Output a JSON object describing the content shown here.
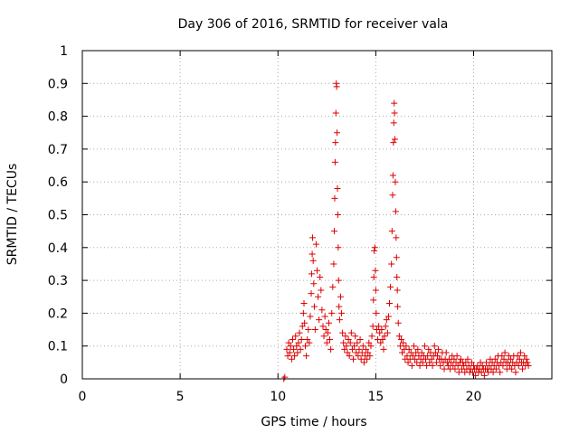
{
  "chart_data": {
    "type": "scatter",
    "title": "Day 306 of 2016, SRMTID for receiver vala",
    "xlabel": "GPS time / hours",
    "ylabel": "SRMTID / TECUs",
    "xlim": [
      0,
      24
    ],
    "ylim": [
      0,
      1
    ],
    "xticks": [
      0,
      5,
      10,
      15,
      20
    ],
    "yticks": [
      0,
      0.1,
      0.2,
      0.3,
      0.4,
      0.5,
      0.6,
      0.7,
      0.8,
      0.9,
      1
    ],
    "xtick_labels": [
      "0",
      "5",
      "10",
      "15",
      "20"
    ],
    "ytick_labels": [
      "0",
      "0.1",
      "0.2",
      "0.3",
      "0.4",
      "0.5",
      "0.6",
      "0.7",
      "0.8",
      "0.9",
      "1"
    ],
    "grid": true,
    "marker": "+",
    "marker_color": "#dd0000",
    "series": [
      {
        "name": "SRMTID",
        "points": [
          [
            10.3,
            0.0
          ],
          [
            10.35,
            0.005
          ],
          [
            10.45,
            0.09
          ],
          [
            10.5,
            0.07
          ],
          [
            10.55,
            0.11
          ],
          [
            10.6,
            0.08
          ],
          [
            10.65,
            0.1
          ],
          [
            10.7,
            0.06
          ],
          [
            10.75,
            0.12
          ],
          [
            10.8,
            0.09
          ],
          [
            10.85,
            0.07
          ],
          [
            10.9,
            0.13
          ],
          [
            10.95,
            0.1
          ],
          [
            11.0,
            0.08
          ],
          [
            11.05,
            0.11
          ],
          [
            11.1,
            0.14
          ],
          [
            11.15,
            0.09
          ],
          [
            11.2,
            0.12
          ],
          [
            11.25,
            0.16
          ],
          [
            11.3,
            0.2
          ],
          [
            11.33,
            0.23
          ],
          [
            11.36,
            0.17
          ],
          [
            11.4,
            0.1
          ],
          [
            11.45,
            0.07
          ],
          [
            11.5,
            0.12
          ],
          [
            11.55,
            0.15
          ],
          [
            11.6,
            0.11
          ],
          [
            11.65,
            0.19
          ],
          [
            11.7,
            0.26
          ],
          [
            11.72,
            0.32
          ],
          [
            11.75,
            0.38
          ],
          [
            11.77,
            0.43
          ],
          [
            11.8,
            0.36
          ],
          [
            11.83,
            0.29
          ],
          [
            11.86,
            0.22
          ],
          [
            11.9,
            0.15
          ],
          [
            11.95,
            0.41
          ],
          [
            12.0,
            0.33
          ],
          [
            12.05,
            0.25
          ],
          [
            12.1,
            0.18
          ],
          [
            12.15,
            0.31
          ],
          [
            12.2,
            0.27
          ],
          [
            12.25,
            0.21
          ],
          [
            12.3,
            0.16
          ],
          [
            12.35,
            0.13
          ],
          [
            12.4,
            0.19
          ],
          [
            12.45,
            0.15
          ],
          [
            12.5,
            0.11
          ],
          [
            12.55,
            0.14
          ],
          [
            12.6,
            0.17
          ],
          [
            12.65,
            0.12
          ],
          [
            12.7,
            0.09
          ],
          [
            12.75,
            0.2
          ],
          [
            12.8,
            0.28
          ],
          [
            12.85,
            0.35
          ],
          [
            12.88,
            0.45
          ],
          [
            12.9,
            0.55
          ],
          [
            12.92,
            0.66
          ],
          [
            12.94,
            0.72
          ],
          [
            12.96,
            0.81
          ],
          [
            12.98,
            0.9
          ],
          [
            13.0,
            0.89
          ],
          [
            13.02,
            0.75
          ],
          [
            13.04,
            0.58
          ],
          [
            13.06,
            0.5
          ],
          [
            13.08,
            0.4
          ],
          [
            13.1,
            0.3
          ],
          [
            13.12,
            0.22
          ],
          [
            13.15,
            0.18
          ],
          [
            13.2,
            0.25
          ],
          [
            13.25,
            0.2
          ],
          [
            13.3,
            0.14
          ],
          [
            13.35,
            0.11
          ],
          [
            13.4,
            0.09
          ],
          [
            13.45,
            0.13
          ],
          [
            13.5,
            0.1
          ],
          [
            13.55,
            0.08
          ],
          [
            13.6,
            0.12
          ],
          [
            13.65,
            0.07
          ],
          [
            13.7,
            0.11
          ],
          [
            13.75,
            0.14
          ],
          [
            13.8,
            0.09
          ],
          [
            13.85,
            0.06
          ],
          [
            13.9,
            0.1
          ],
          [
            13.95,
            0.13
          ],
          [
            14.0,
            0.08
          ],
          [
            14.05,
            0.11
          ],
          [
            14.1,
            0.07
          ],
          [
            14.15,
            0.09
          ],
          [
            14.2,
            0.12
          ],
          [
            14.25,
            0.06
          ],
          [
            14.3,
            0.08
          ],
          [
            14.35,
            0.1
          ],
          [
            14.4,
            0.05
          ],
          [
            14.45,
            0.07
          ],
          [
            14.5,
            0.09
          ],
          [
            14.55,
            0.06
          ],
          [
            14.6,
            0.08
          ],
          [
            14.65,
            0.11
          ],
          [
            14.7,
            0.07
          ],
          [
            14.75,
            0.1
          ],
          [
            14.8,
            0.13
          ],
          [
            14.85,
            0.16
          ],
          [
            14.88,
            0.24
          ],
          [
            14.9,
            0.31
          ],
          [
            14.92,
            0.39
          ],
          [
            14.95,
            0.4
          ],
          [
            14.98,
            0.33
          ],
          [
            15.0,
            0.27
          ],
          [
            15.02,
            0.2
          ],
          [
            15.05,
            0.15
          ],
          [
            15.1,
            0.12
          ],
          [
            15.15,
            0.16
          ],
          [
            15.2,
            0.14
          ],
          [
            15.25,
            0.11
          ],
          [
            15.3,
            0.15
          ],
          [
            15.35,
            0.12
          ],
          [
            15.4,
            0.09
          ],
          [
            15.45,
            0.13
          ],
          [
            15.5,
            0.16
          ],
          [
            15.55,
            0.18
          ],
          [
            15.6,
            0.14
          ],
          [
            15.65,
            0.19
          ],
          [
            15.7,
            0.23
          ],
          [
            15.75,
            0.28
          ],
          [
            15.8,
            0.35
          ],
          [
            15.83,
            0.45
          ],
          [
            15.86,
            0.56
          ],
          [
            15.88,
            0.62
          ],
          [
            15.9,
            0.72
          ],
          [
            15.92,
            0.78
          ],
          [
            15.94,
            0.84
          ],
          [
            15.96,
            0.81
          ],
          [
            15.98,
            0.73
          ],
          [
            16.0,
            0.6
          ],
          [
            16.02,
            0.51
          ],
          [
            16.04,
            0.43
          ],
          [
            16.06,
            0.37
          ],
          [
            16.08,
            0.31
          ],
          [
            16.1,
            0.27
          ],
          [
            16.12,
            0.22
          ],
          [
            16.15,
            0.17
          ],
          [
            16.2,
            0.13
          ],
          [
            16.25,
            0.1
          ],
          [
            16.3,
            0.12
          ],
          [
            16.35,
            0.08
          ],
          [
            16.4,
            0.11
          ],
          [
            16.45,
            0.09
          ],
          [
            16.5,
            0.06
          ],
          [
            16.55,
            0.1
          ],
          [
            16.6,
            0.07
          ],
          [
            16.65,
            0.05
          ],
          [
            16.7,
            0.09
          ],
          [
            16.75,
            0.06
          ],
          [
            16.8,
            0.08
          ],
          [
            16.85,
            0.04
          ],
          [
            16.9,
            0.07
          ],
          [
            16.95,
            0.1
          ],
          [
            17.0,
            0.06
          ],
          [
            17.05,
            0.08
          ],
          [
            17.1,
            0.05
          ],
          [
            17.15,
            0.09
          ],
          [
            17.2,
            0.07
          ],
          [
            17.25,
            0.04
          ],
          [
            17.3,
            0.06
          ],
          [
            17.35,
            0.08
          ],
          [
            17.4,
            0.05
          ],
          [
            17.45,
            0.07
          ],
          [
            17.5,
            0.1
          ],
          [
            17.55,
            0.06
          ],
          [
            17.6,
            0.04
          ],
          [
            17.65,
            0.07
          ],
          [
            17.7,
            0.09
          ],
          [
            17.75,
            0.05
          ],
          [
            17.8,
            0.08
          ],
          [
            17.85,
            0.06
          ],
          [
            17.9,
            0.04
          ],
          [
            17.95,
            0.07
          ],
          [
            18.0,
            0.1
          ],
          [
            18.05,
            0.08
          ],
          [
            18.1,
            0.05
          ],
          [
            18.15,
            0.07
          ],
          [
            18.2,
            0.09
          ],
          [
            18.25,
            0.06
          ],
          [
            18.3,
            0.04
          ],
          [
            18.35,
            0.06
          ],
          [
            18.4,
            0.08
          ],
          [
            18.45,
            0.05
          ],
          [
            18.5,
            0.03
          ],
          [
            18.55,
            0.06
          ],
          [
            18.6,
            0.08
          ],
          [
            18.65,
            0.05
          ],
          [
            18.7,
            0.04
          ],
          [
            18.75,
            0.06
          ],
          [
            18.8,
            0.03
          ],
          [
            18.85,
            0.05
          ],
          [
            18.9,
            0.07
          ],
          [
            18.95,
            0.04
          ],
          [
            19.0,
            0.06
          ],
          [
            19.05,
            0.03
          ],
          [
            19.1,
            0.05
          ],
          [
            19.15,
            0.07
          ],
          [
            19.2,
            0.04
          ],
          [
            19.25,
            0.02
          ],
          [
            19.3,
            0.05
          ],
          [
            19.35,
            0.06
          ],
          [
            19.4,
            0.03
          ],
          [
            19.45,
            0.05
          ],
          [
            19.5,
            0.04
          ],
          [
            19.55,
            0.02
          ],
          [
            19.6,
            0.05
          ],
          [
            19.65,
            0.03
          ],
          [
            19.7,
            0.06
          ],
          [
            19.75,
            0.04
          ],
          [
            19.8,
            0.02
          ],
          [
            19.85,
            0.03
          ],
          [
            19.9,
            0.05
          ],
          [
            19.95,
            0.02
          ],
          [
            20.0,
            0.04
          ],
          [
            20.05,
            0.03
          ],
          [
            20.1,
            0.01
          ],
          [
            20.15,
            0.03
          ],
          [
            20.2,
            0.04
          ],
          [
            20.25,
            0.02
          ],
          [
            20.3,
            0.03
          ],
          [
            20.35,
            0.05
          ],
          [
            20.4,
            0.02
          ],
          [
            20.45,
            0.04
          ],
          [
            20.5,
            0.03
          ],
          [
            20.55,
            0.01
          ],
          [
            20.6,
            0.03
          ],
          [
            20.65,
            0.05
          ],
          [
            20.7,
            0.03
          ],
          [
            20.75,
            0.02
          ],
          [
            20.8,
            0.04
          ],
          [
            20.85,
            0.06
          ],
          [
            20.9,
            0.03
          ],
          [
            20.95,
            0.05
          ],
          [
            21.0,
            0.02
          ],
          [
            21.05,
            0.04
          ],
          [
            21.1,
            0.06
          ],
          [
            21.15,
            0.03
          ],
          [
            21.2,
            0.05
          ],
          [
            21.25,
            0.07
          ],
          [
            21.3,
            0.04
          ],
          [
            21.35,
            0.02
          ],
          [
            21.4,
            0.05
          ],
          [
            21.45,
            0.07
          ],
          [
            21.5,
            0.04
          ],
          [
            21.55,
            0.06
          ],
          [
            21.6,
            0.08
          ],
          [
            21.65,
            0.05
          ],
          [
            21.7,
            0.03
          ],
          [
            21.75,
            0.05
          ],
          [
            21.8,
            0.07
          ],
          [
            21.85,
            0.04
          ],
          [
            21.9,
            0.06
          ],
          [
            21.95,
            0.03
          ],
          [
            22.0,
            0.05
          ],
          [
            22.05,
            0.07
          ],
          [
            22.1,
            0.04
          ],
          [
            22.15,
            0.02
          ],
          [
            22.2,
            0.05
          ],
          [
            22.25,
            0.07
          ],
          [
            22.3,
            0.04
          ],
          [
            22.35,
            0.06
          ],
          [
            22.4,
            0.08
          ],
          [
            22.45,
            0.05
          ],
          [
            22.5,
            0.03
          ],
          [
            22.55,
            0.05
          ],
          [
            22.6,
            0.07
          ],
          [
            22.65,
            0.04
          ],
          [
            22.7,
            0.06
          ],
          [
            22.75,
            0.05
          ],
          [
            22.8,
            0.04
          ]
        ]
      }
    ]
  }
}
